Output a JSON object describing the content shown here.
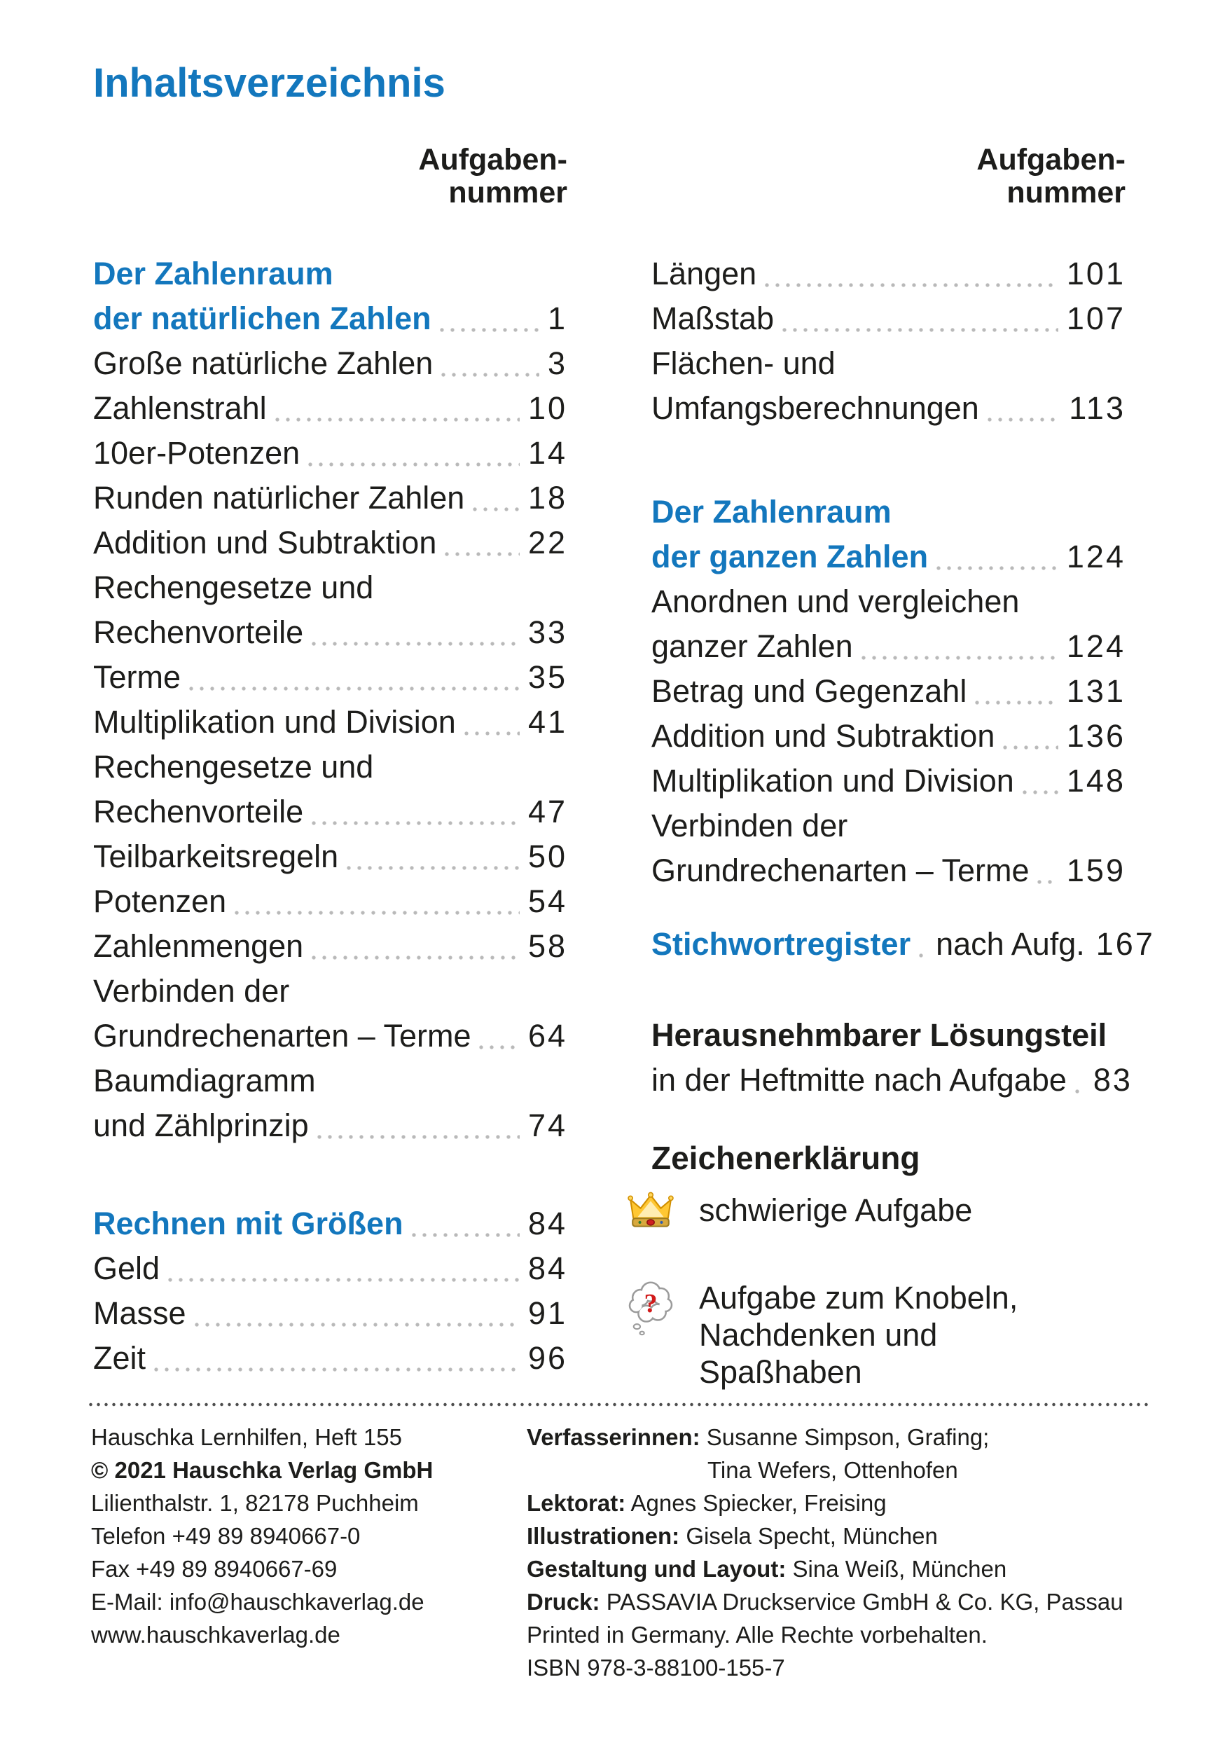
{
  "title": "Inhaltsverzeichnis",
  "colors": {
    "accent_blue": "#1377bd",
    "text_black": "#1d1d1b",
    "leader_gray": "#b9b9b9",
    "question_mark_red": "#d11a1a",
    "crown_gold": "#ffc733"
  },
  "column_headers": {
    "left": {
      "line1": "Aufgaben-",
      "line2": "nummer"
    },
    "right": {
      "line1": "Aufgaben-",
      "line2": "nummer"
    }
  },
  "toc_left": {
    "groups": [
      {
        "entries": [
          {
            "lines": [
              "Der Zahlenraum",
              "der natürlichen Zahlen"
            ],
            "number": "1",
            "blue": true
          },
          {
            "lines": [
              "Große natürliche Zahlen"
            ],
            "number": "3"
          },
          {
            "lines": [
              "Zahlenstrahl"
            ],
            "number": "10"
          },
          {
            "lines": [
              "10er-Potenzen"
            ],
            "number": "14"
          },
          {
            "lines": [
              "Runden natürlicher Zahlen"
            ],
            "number": "18"
          },
          {
            "lines": [
              "Addition und Subtraktion"
            ],
            "number": "22"
          },
          {
            "lines": [
              "Rechengesetze und",
              "Rechenvorteile"
            ],
            "number": "33"
          },
          {
            "lines": [
              "Terme"
            ],
            "number": "35"
          },
          {
            "lines": [
              "Multiplikation und Division"
            ],
            "number": "41"
          },
          {
            "lines": [
              "Rechengesetze und",
              "Rechenvorteile"
            ],
            "number": "47"
          },
          {
            "lines": [
              "Teilbarkeitsregeln"
            ],
            "number": "50"
          },
          {
            "lines": [
              "Potenzen"
            ],
            "number": "54"
          },
          {
            "lines": [
              "Zahlenmengen"
            ],
            "number": "58"
          },
          {
            "lines": [
              "Verbinden der",
              "Grundrechenarten – Terme"
            ],
            "number": "64"
          },
          {
            "lines": [
              "Baumdiagramm",
              "und Zählprinzip"
            ],
            "number": "74"
          }
        ]
      },
      {
        "entries": [
          {
            "lines": [
              "Rechnen mit Größen"
            ],
            "number": "84",
            "blue": true
          },
          {
            "lines": [
              "Geld"
            ],
            "number": "84"
          },
          {
            "lines": [
              "Masse"
            ],
            "number": "91"
          },
          {
            "lines": [
              "Zeit"
            ],
            "number": "96"
          }
        ]
      }
    ]
  },
  "toc_right": {
    "groups": [
      {
        "entries": [
          {
            "lines": [
              "Längen"
            ],
            "number": "101"
          },
          {
            "lines": [
              "Maßstab"
            ],
            "number": "107"
          },
          {
            "lines": [
              "Flächen- und",
              "Umfangsberechnungen"
            ],
            "number": "113"
          }
        ]
      },
      {
        "entries": [
          {
            "lines": [
              "Der Zahlenraum",
              "der ganzen Zahlen"
            ],
            "number": "124",
            "blue": true
          },
          {
            "lines": [
              "Anordnen und vergleichen",
              "ganzer Zahlen"
            ],
            "number": "124"
          },
          {
            "lines": [
              "Betrag und Gegenzahl"
            ],
            "number": "131"
          },
          {
            "lines": [
              "Addition und Subtraktion"
            ],
            "number": "136"
          },
          {
            "lines": [
              "Multiplikation und Division"
            ],
            "number": "148"
          },
          {
            "lines": [
              "Verbinden der",
              "Grundrechenarten – Terme"
            ],
            "number": "159"
          }
        ]
      },
      {
        "entries": [
          {
            "lines": [
              "Stichwortregister"
            ],
            "suffix": "nach Aufg.",
            "number": "167",
            "blue": true
          }
        ]
      },
      {
        "entries": [
          {
            "lines": [
              "Herausnehmbarer Lösungsteil",
              "in der Heftmitte nach Aufgabe"
            ],
            "number": "83",
            "bold_first": true
          }
        ]
      }
    ]
  },
  "legend": {
    "title": "Zeichenerklärung",
    "items": [
      {
        "icon": "crown-icon",
        "lines": [
          "schwierige Aufgabe"
        ]
      },
      {
        "icon": "thought-bubble-question-icon",
        "lines": [
          "Aufgabe zum Knobeln,",
          "Nachdenken und",
          "Spaßhaben"
        ]
      }
    ]
  },
  "footer": {
    "left_lines": [
      {
        "text": "Hauschka Lernhilfen, Heft 155"
      },
      {
        "text": "© 2021 Hauschka Verlag GmbH",
        "bold": true
      },
      {
        "text": "Lilienthalstr. 1, 82178 Puchheim"
      },
      {
        "text": "Telefon +49 89 8940667-0"
      },
      {
        "text": "Fax +49 89 8940667-69"
      },
      {
        "text": "E-Mail: info@hauschkaverlag.de"
      },
      {
        "text": "www.hauschkaverlag.de"
      }
    ],
    "right_lines": [
      {
        "label": "Verfasserinnen:",
        "text": " Susanne Simpson, Grafing;"
      },
      {
        "text": "Tina Wefers, Ottenhofen",
        "indent": true
      },
      {
        "label": "Lektorat:",
        "text": " Agnes Spiecker, Freising"
      },
      {
        "label": "Illustrationen:",
        "text": " Gisela Specht, München"
      },
      {
        "label": "Gestaltung und Layout:",
        "text": " Sina Weiß, München"
      },
      {
        "label": "Druck:",
        "text": " PASSAVIA Druckservice GmbH & Co. KG, Passau"
      },
      {
        "text": "Printed in Germany. Alle Rechte vorbehalten."
      },
      {
        "text": "ISBN 978-3-88100-155-7"
      }
    ]
  }
}
